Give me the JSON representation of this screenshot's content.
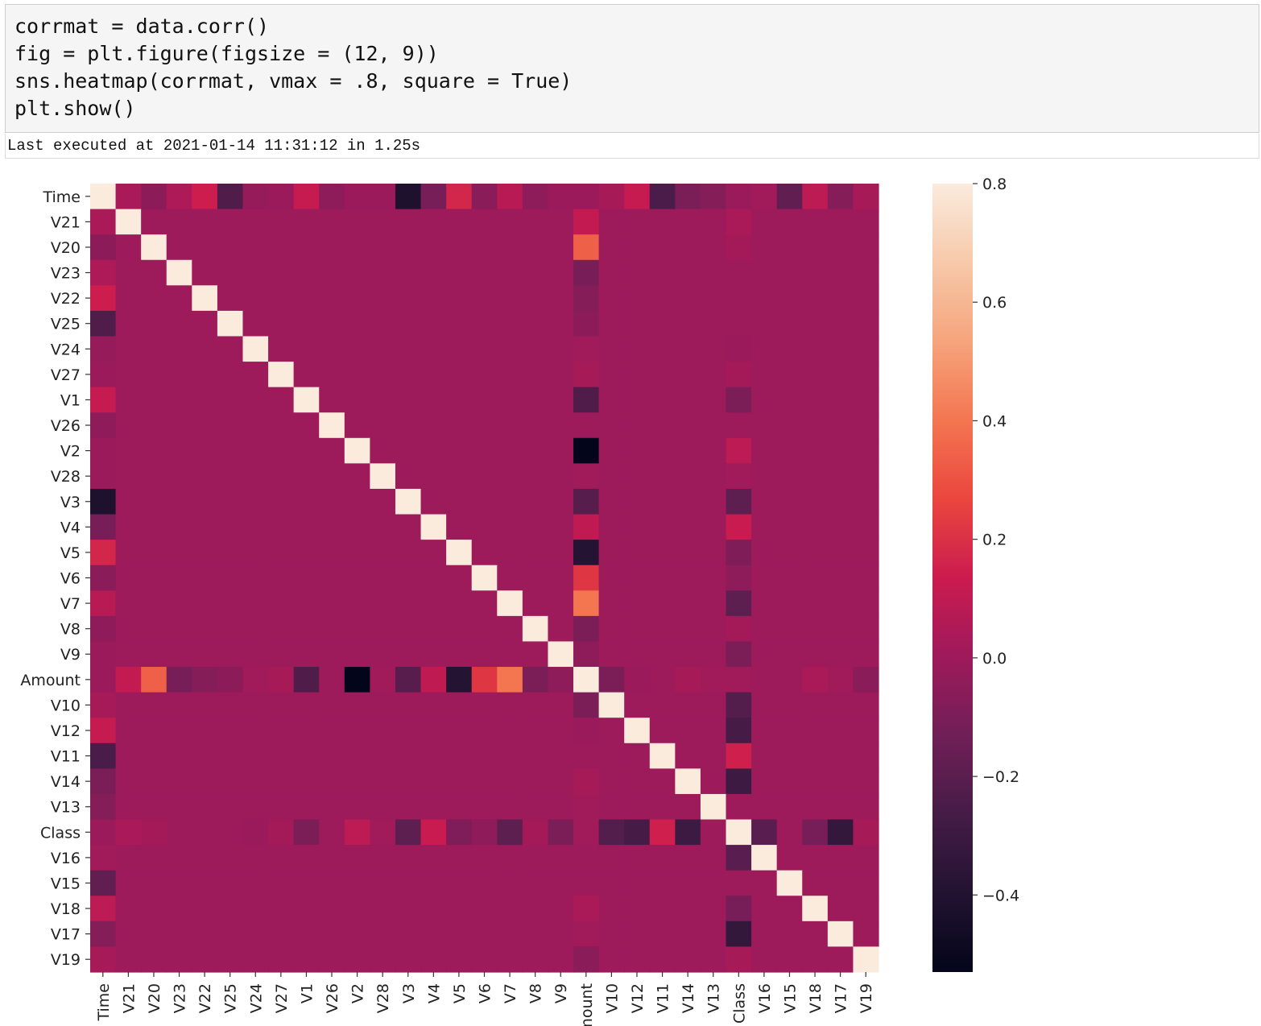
{
  "cell": {
    "code": [
      "corrmat = data.corr()",
      "fig = plt.figure(figsize = (12, 9))",
      "sns.heatmap(corrmat, vmax = .8, square = True)",
      "plt.show()"
    ],
    "status": "Last executed at 2021-01-14 11:31:12 in 1.25s"
  },
  "chart_data": {
    "type": "heatmap",
    "categories": [
      "Time",
      "V21",
      "V20",
      "V23",
      "V22",
      "V25",
      "V24",
      "V27",
      "V1",
      "V26",
      "V2",
      "V28",
      "V3",
      "V4",
      "V5",
      "V6",
      "V7",
      "V8",
      "V9",
      "Amount",
      "V10",
      "V12",
      "V11",
      "V14",
      "V13",
      "Class",
      "V16",
      "V15",
      "V18",
      "V17",
      "V19"
    ],
    "colormap": [
      "#03051a",
      "#221331",
      "#451c47",
      "#701f57",
      "#9e1a5b",
      "#cb1b4f",
      "#eb463e",
      "#f37651",
      "#f6a47c",
      "#f7c9aa",
      "#faebdd"
    ],
    "colorbar_lim": [
      -0.53,
      0.8
    ],
    "colorbar_ticks": [
      {
        "value": -0.4,
        "label": "−0.4"
      },
      {
        "value": -0.2,
        "label": "−0.2"
      },
      {
        "value": 0,
        "label": "0.0"
      },
      0.2,
      0.4,
      0.6,
      0.8
    ],
    "values": [
      [
        1,
        0.04,
        -0.05,
        0.05,
        0.14,
        -0.23,
        -0.02,
        -0.01,
        0.12,
        -0.04,
        -0.01,
        -0.01,
        -0.42,
        -0.11,
        0.17,
        -0.06,
        0.08,
        -0.04,
        -0.01,
        -0.01,
        0.03,
        0.12,
        -0.25,
        -0.1,
        -0.07,
        -0.01,
        0.01,
        -0.18,
        0.09,
        -0.07,
        0.03
      ],
      [
        0.04,
        1,
        0,
        0,
        0,
        0,
        0,
        0,
        0,
        0,
        0,
        0,
        0,
        0,
        0,
        0,
        0,
        0,
        0,
        0.11,
        0,
        0,
        0,
        0,
        0,
        0.04,
        0,
        0,
        0,
        0,
        0
      ],
      [
        -0.05,
        0,
        1,
        0,
        0,
        0,
        0,
        0,
        0,
        0,
        0,
        0,
        0,
        0,
        0,
        0,
        0,
        0,
        0,
        0.34,
        0,
        0,
        0,
        0,
        0,
        0.02,
        0,
        0,
        0,
        0,
        0
      ],
      [
        0.05,
        0,
        0,
        1,
        0,
        0,
        0,
        0,
        0,
        0,
        0,
        0,
        0,
        0,
        0,
        0,
        0,
        0,
        0,
        -0.11,
        0,
        0,
        0,
        0,
        0,
        0,
        0,
        0,
        0,
        0,
        0
      ],
      [
        0.14,
        0,
        0,
        0,
        1,
        0,
        0,
        0,
        0,
        0,
        0,
        0,
        0,
        0,
        0,
        0,
        0,
        0,
        0,
        -0.07,
        0,
        0,
        0,
        0,
        0,
        0,
        0,
        0,
        0,
        0,
        0
      ],
      [
        -0.23,
        0,
        0,
        0,
        0,
        1,
        0,
        0,
        0,
        0,
        0,
        0,
        0,
        0,
        0,
        0,
        0,
        0,
        0,
        -0.05,
        0,
        0,
        0,
        0,
        0,
        0,
        0,
        0,
        0,
        0,
        0
      ],
      [
        -0.02,
        0,
        0,
        0,
        0,
        0,
        1,
        0,
        0,
        0,
        0,
        0,
        0,
        0,
        0,
        0,
        0,
        0,
        0,
        0.01,
        0,
        0,
        0,
        0,
        0,
        -0.01,
        0,
        0,
        0,
        0,
        0
      ],
      [
        -0.01,
        0,
        0,
        0,
        0,
        0,
        0,
        1,
        0,
        0,
        0,
        0,
        0,
        0,
        0,
        0,
        0,
        0,
        0,
        0.03,
        0,
        0,
        0,
        0,
        0,
        0.02,
        0,
        0,
        0,
        0,
        0
      ],
      [
        0.12,
        0,
        0,
        0,
        0,
        0,
        0,
        0,
        1,
        0,
        0,
        0,
        0,
        0,
        0,
        0,
        0,
        0,
        0,
        -0.23,
        0,
        0,
        0,
        0,
        0,
        -0.1,
        0,
        0,
        0,
        0,
        0
      ],
      [
        -0.04,
        0,
        0,
        0,
        0,
        0,
        0,
        0,
        0,
        1,
        0,
        0,
        0,
        0,
        0,
        0,
        0,
        0,
        0,
        0,
        0,
        0,
        0,
        0,
        0,
        0,
        0,
        0,
        0,
        0,
        0
      ],
      [
        -0.01,
        0,
        0,
        0,
        0,
        0,
        0,
        0,
        0,
        0,
        1,
        0,
        0,
        0,
        0,
        0,
        0,
        0,
        0,
        -0.53,
        0,
        0,
        0,
        0,
        0,
        0.09,
        0,
        0,
        0,
        0,
        0
      ],
      [
        -0.01,
        0,
        0,
        0,
        0,
        0,
        0,
        0,
        0,
        0,
        0,
        1,
        0,
        0,
        0,
        0,
        0,
        0,
        0,
        0.01,
        0,
        0,
        0,
        0,
        0,
        0.01,
        0,
        0,
        0,
        0,
        0
      ],
      [
        -0.42,
        0,
        0,
        0,
        0,
        0,
        0,
        0,
        0,
        0,
        0,
        0,
        1,
        0,
        0,
        0,
        0,
        0,
        0,
        -0.21,
        0,
        0,
        0,
        0,
        0,
        -0.19,
        0,
        0,
        0,
        0,
        0
      ],
      [
        -0.11,
        0,
        0,
        0,
        0,
        0,
        0,
        0,
        0,
        0,
        0,
        0,
        0,
        1,
        0,
        0,
        0,
        0,
        0,
        0.1,
        0,
        0,
        0,
        0,
        0,
        0.13,
        0,
        0,
        0,
        0,
        0
      ],
      [
        0.17,
        0,
        0,
        0,
        0,
        0,
        0,
        0,
        0,
        0,
        0,
        0,
        0,
        0,
        1,
        0,
        0,
        0,
        0,
        -0.39,
        0,
        0,
        0,
        0,
        0,
        -0.09,
        0,
        0,
        0,
        0,
        0
      ],
      [
        -0.06,
        0,
        0,
        0,
        0,
        0,
        0,
        0,
        0,
        0,
        0,
        0,
        0,
        0,
        0,
        1,
        0,
        0,
        0,
        0.22,
        0,
        0,
        0,
        0,
        0,
        -0.04,
        0,
        0,
        0,
        0,
        0
      ],
      [
        0.08,
        0,
        0,
        0,
        0,
        0,
        0,
        0,
        0,
        0,
        0,
        0,
        0,
        0,
        0,
        0,
        1,
        0,
        0,
        0.4,
        0,
        0,
        0,
        0,
        0,
        -0.19,
        0,
        0,
        0,
        0,
        0
      ],
      [
        -0.04,
        0,
        0,
        0,
        0,
        0,
        0,
        0,
        0,
        0,
        0,
        0,
        0,
        0,
        0,
        0,
        0,
        1,
        0,
        -0.1,
        0,
        0,
        0,
        0,
        0,
        0.02,
        0,
        0,
        0,
        0,
        0
      ],
      [
        -0.01,
        0,
        0,
        0,
        0,
        0,
        0,
        0,
        0,
        0,
        0,
        0,
        0,
        0,
        0,
        0,
        0,
        0,
        1,
        -0.04,
        0,
        0,
        0,
        0,
        0,
        -0.1,
        0,
        0,
        0,
        0,
        0
      ],
      [
        -0.01,
        0.11,
        0.34,
        -0.11,
        -0.07,
        -0.05,
        0.01,
        0.03,
        -0.23,
        0,
        -0.53,
        0.01,
        -0.21,
        0.1,
        -0.39,
        0.22,
        0.4,
        -0.1,
        -0.04,
        1,
        -0.1,
        -0.01,
        0,
        0.03,
        0.01,
        0.01,
        0,
        0,
        0.04,
        0.01,
        -0.06
      ],
      [
        0.03,
        0,
        0,
        0,
        0,
        0,
        0,
        0,
        0,
        0,
        0,
        0,
        0,
        0,
        0,
        0,
        0,
        0,
        0,
        -0.1,
        1,
        0,
        0,
        0,
        0,
        -0.22,
        0,
        0,
        0,
        0,
        0
      ],
      [
        0.12,
        0,
        0,
        0,
        0,
        0,
        0,
        0,
        0,
        0,
        0,
        0,
        0,
        0,
        0,
        0,
        0,
        0,
        0,
        -0.01,
        0,
        1,
        0,
        0,
        0,
        -0.26,
        0,
        0,
        0,
        0,
        0
      ],
      [
        -0.25,
        0,
        0,
        0,
        0,
        0,
        0,
        0,
        0,
        0,
        0,
        0,
        0,
        0,
        0,
        0,
        0,
        0,
        0,
        0,
        0,
        0,
        1,
        0,
        0,
        0.15,
        0,
        0,
        0,
        0,
        0
      ],
      [
        -0.1,
        0,
        0,
        0,
        0,
        0,
        0,
        0,
        0,
        0,
        0,
        0,
        0,
        0,
        0,
        0,
        0,
        0,
        0,
        0.03,
        0,
        0,
        0,
        1,
        0,
        -0.3,
        0,
        0,
        0,
        0,
        0
      ],
      [
        -0.07,
        0,
        0,
        0,
        0,
        0,
        0,
        0,
        0,
        0,
        0,
        0,
        0,
        0,
        0,
        0,
        0,
        0,
        0,
        0.01,
        0,
        0,
        0,
        0,
        1,
        0,
        0,
        0,
        0,
        0,
        0
      ],
      [
        -0.01,
        0.04,
        0.02,
        0,
        0,
        0,
        -0.01,
        0.02,
        -0.1,
        0,
        0.09,
        0.01,
        -0.19,
        0.13,
        -0.09,
        -0.04,
        -0.19,
        0.02,
        -0.1,
        0.01,
        -0.22,
        -0.26,
        0.15,
        -0.3,
        0,
        1,
        -0.2,
        0,
        -0.11,
        -0.33,
        0.03
      ],
      [
        0.01,
        0,
        0,
        0,
        0,
        0,
        0,
        0,
        0,
        0,
        0,
        0,
        0,
        0,
        0,
        0,
        0,
        0,
        0,
        0,
        0,
        0,
        0,
        0,
        0,
        -0.2,
        1,
        0,
        0,
        0,
        0
      ],
      [
        -0.18,
        0,
        0,
        0,
        0,
        0,
        0,
        0,
        0,
        0,
        0,
        0,
        0,
        0,
        0,
        0,
        0,
        0,
        0,
        0,
        0,
        0,
        0,
        0,
        0,
        0,
        0,
        1,
        0,
        0,
        0
      ],
      [
        0.09,
        0,
        0,
        0,
        0,
        0,
        0,
        0,
        0,
        0,
        0,
        0,
        0,
        0,
        0,
        0,
        0,
        0,
        0,
        0.04,
        0,
        0,
        0,
        0,
        0,
        -0.11,
        0,
        0,
        1,
        0,
        0
      ],
      [
        -0.07,
        0,
        0,
        0,
        0,
        0,
        0,
        0,
        0,
        0,
        0,
        0,
        0,
        0,
        0,
        0,
        0,
        0,
        0,
        0.01,
        0,
        0,
        0,
        0,
        0,
        -0.33,
        0,
        0,
        0,
        1,
        0
      ],
      [
        0.03,
        0,
        0,
        0,
        0,
        0,
        0,
        0,
        0,
        0,
        0,
        0,
        0,
        0,
        0,
        0,
        0,
        0,
        0,
        -0.06,
        0,
        0,
        0,
        0,
        0,
        0.03,
        0,
        0,
        0,
        0,
        1
      ]
    ]
  }
}
